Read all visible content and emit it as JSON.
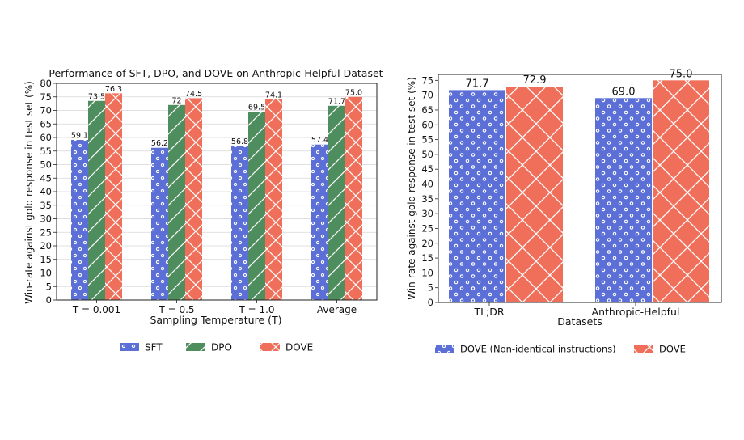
{
  "chart_data": [
    {
      "type": "bar",
      "title": "Performance of SFT, DPO, and DOVE on Anthropic-Helpful Dataset",
      "xlabel": "Sampling Temperature (T)",
      "ylabel": "Win-rate against gold response in test set (%)",
      "categories": [
        "T = 0.001",
        "T = 0.5",
        "T = 1.0",
        "Average"
      ],
      "ylim": [
        0,
        80
      ],
      "yticks": [
        "0",
        "5",
        "10",
        "15",
        "20",
        "25",
        "30",
        "35",
        "40",
        "45",
        "50",
        "55",
        "60",
        "65",
        "70",
        "75",
        "80"
      ],
      "grid": true,
      "legend_position": "bottom",
      "series": [
        {
          "name": "SFT",
          "values": [
            59.1,
            56.2,
            56.8,
            57.4
          ],
          "labels": [
            "59.1",
            "56.2",
            "56.8",
            "57.4"
          ],
          "color": "#5b6fd6",
          "pattern": "dots"
        },
        {
          "name": "DPO",
          "values": [
            73.5,
            72,
            69.5,
            71.7
          ],
          "labels": [
            "73.5",
            "72",
            "69.5",
            "71.7"
          ],
          "color": "#4e8d5e",
          "pattern": "diagonal"
        },
        {
          "name": "DOVE",
          "values": [
            76.3,
            74.5,
            74.1,
            75.0
          ],
          "labels": [
            "76.3",
            "74.5",
            "74.1",
            "75.0"
          ],
          "color": "#ef6f5a",
          "pattern": "crosshatch"
        }
      ]
    },
    {
      "type": "bar",
      "title": "",
      "xlabel": "Datasets",
      "ylabel": "Win-rate against gold response in test set (%)",
      "categories": [
        "TL;DR",
        "Anthropic-Helpful"
      ],
      "ylim": [
        0,
        77
      ],
      "yticks": [
        "0",
        "5",
        "10",
        "15",
        "20",
        "25",
        "30",
        "35",
        "40",
        "45",
        "50",
        "55",
        "60",
        "65",
        "70",
        "75"
      ],
      "grid": false,
      "legend_position": "bottom",
      "series": [
        {
          "name": "DOVE (Non-identical instructions)",
          "values": [
            71.7,
            69.0
          ],
          "labels": [
            "71.7",
            "69.0"
          ],
          "color": "#5b6fd6",
          "pattern": "dots"
        },
        {
          "name": "DOVE",
          "values": [
            72.9,
            75.0
          ],
          "labels": [
            "72.9",
            "75.0"
          ],
          "color": "#ef6f5a",
          "pattern": "crosshatch"
        }
      ]
    }
  ]
}
